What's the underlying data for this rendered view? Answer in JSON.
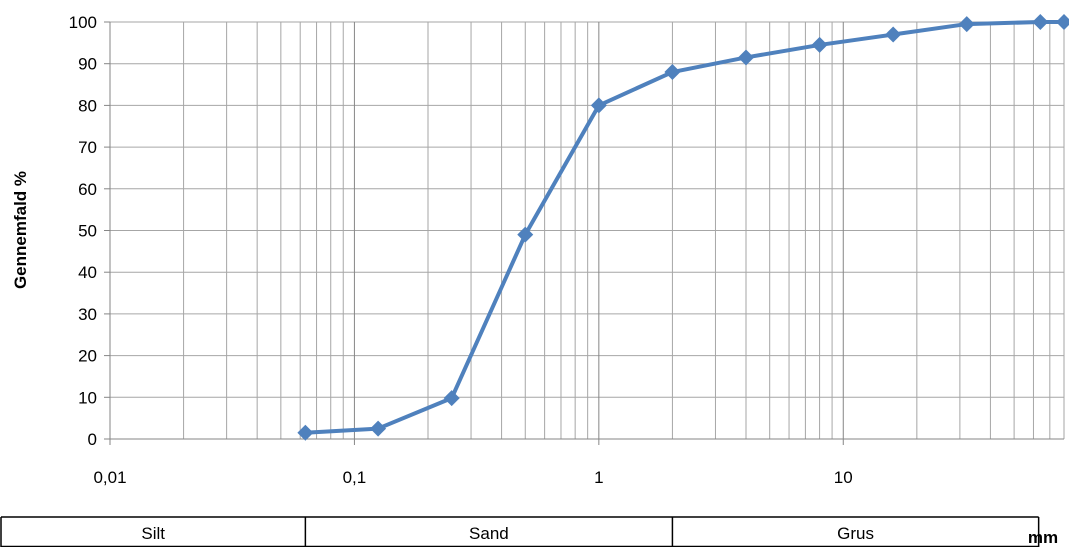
{
  "chart_data": {
    "type": "line",
    "x_scale": "log",
    "xlim": [
      0.01,
      80
    ],
    "ylim": [
      0,
      100
    ],
    "y_ticks": [
      0,
      10,
      20,
      30,
      40,
      50,
      60,
      70,
      80,
      90,
      100
    ],
    "x_ticks": [
      0.01,
      0.1,
      1,
      10
    ],
    "x_tick_labels": [
      "0,01",
      "0,1",
      "1",
      "10"
    ],
    "ylabel": "Gennemfald %",
    "xlabel": "mm",
    "grid": true,
    "series": [
      {
        "color": "#4f81bd",
        "marker": "diamond",
        "x": [
          0.063,
          0.125,
          0.25,
          0.5,
          1,
          2,
          4,
          8,
          16,
          32,
          64,
          80
        ],
        "y": [
          1.5,
          2.5,
          9.8,
          49,
          80,
          88,
          91.5,
          94.5,
          97,
          99.5,
          100,
          100
        ]
      }
    ],
    "zones": [
      {
        "label": "Silt",
        "from": 0.002,
        "to": 0.063
      },
      {
        "label": "Sand",
        "from": 0.063,
        "to": 2
      },
      {
        "label": "Grus",
        "from": 2,
        "to": 63
      }
    ],
    "colors": {
      "grid": "#a6a6a6",
      "axis": "#868686",
      "line": "#4f81bd"
    }
  }
}
